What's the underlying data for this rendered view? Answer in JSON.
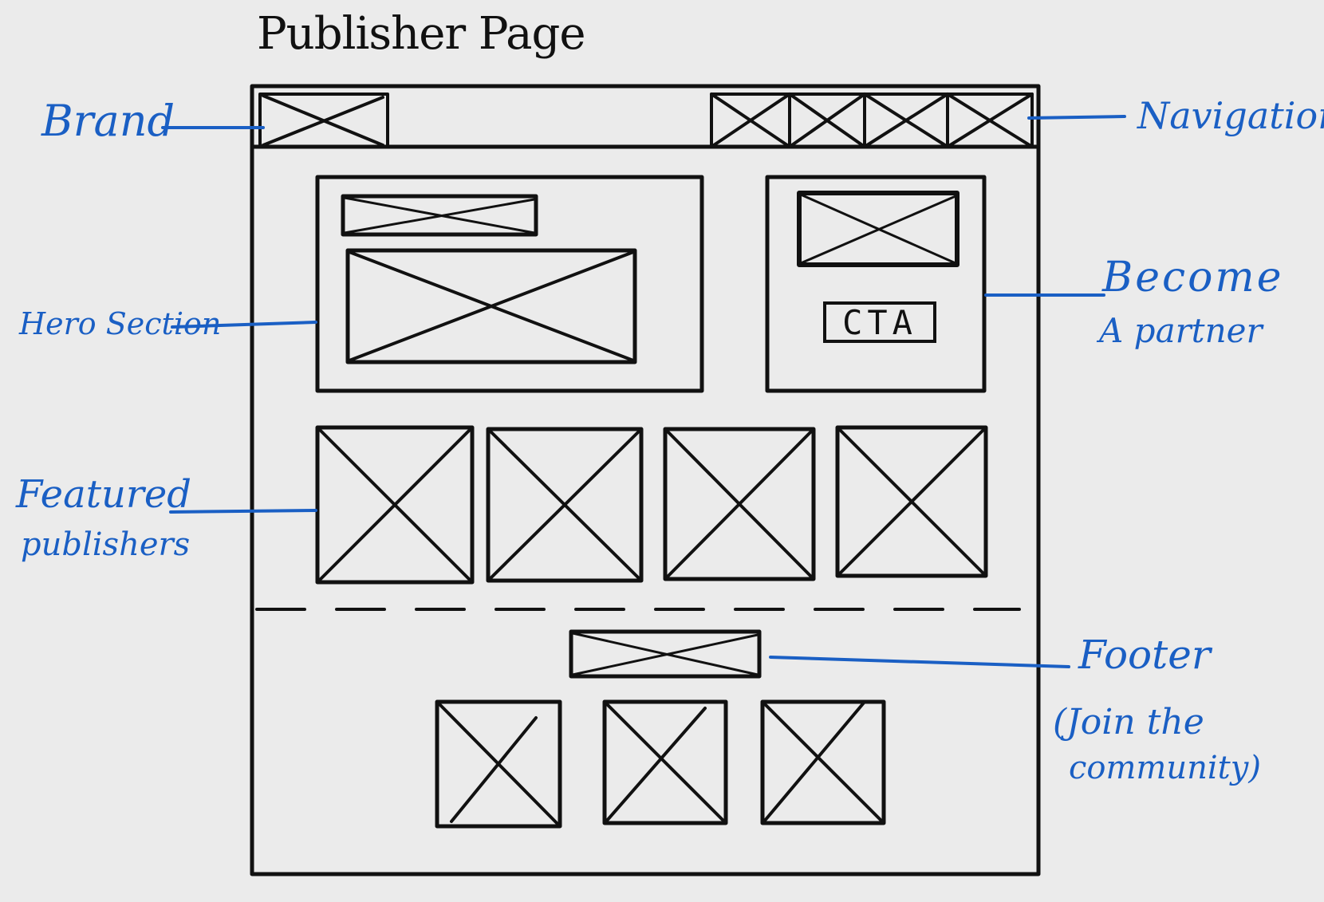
{
  "title": "Publisher Page",
  "labels": {
    "brand": "Brand",
    "navigation": "Navigation",
    "hero_section": "Hero Section",
    "become_partner_line1": "Become",
    "become_partner_line2": "A partner",
    "featured_line1": "Featured",
    "featured_line2": "publishers",
    "footer_line1": "Footer",
    "footer_line2": "(Join the",
    "footer_line3": "community)"
  },
  "cta_label": "CTA",
  "colors": {
    "ink": "#111111",
    "annotation": "#1a5fc4",
    "background": "#ebebeb"
  }
}
